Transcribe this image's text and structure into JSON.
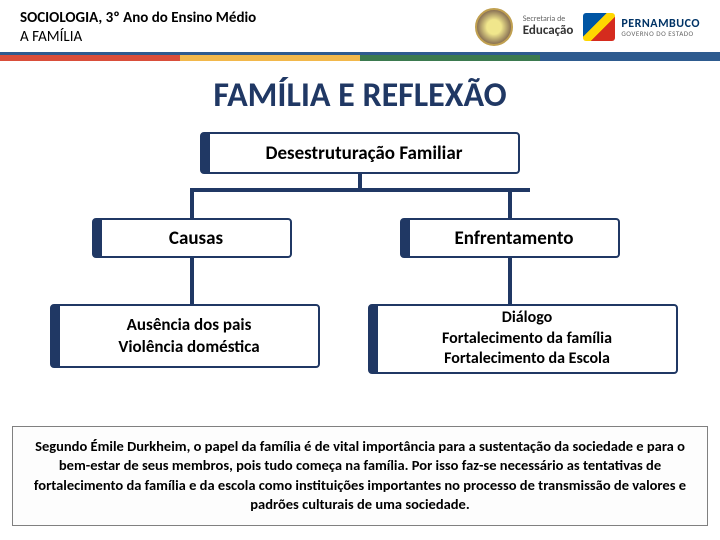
{
  "header": {
    "course": "SOCIOLOGIA, 3º Ano do Ensino Médio",
    "topic": "A FAMÍLIA",
    "secretaria_top": "Secretaria de",
    "secretaria_main": "Educação",
    "state_name": "PERNAMBUCO",
    "state_sub": "GOVERNO DO ESTADO"
  },
  "title": "FAMÍLIA E REFLEXÃO",
  "diagram": {
    "type": "tree",
    "root": "Desestruturação Familiar",
    "level1": {
      "left": "Causas",
      "right": "Enfrentamento"
    },
    "level2": {
      "left_line1": "Ausência dos pais",
      "left_line2": "Violência doméstica",
      "right_line1": "Diálogo",
      "right_line2": "Fortalecimento da família",
      "right_line3": "Fortalecimento da Escola"
    },
    "node_border_color": "#203864",
    "node_bg": "#ffffff",
    "connector_color": "#203864",
    "title_fontsize": 34,
    "node_fontsize": 19,
    "leaf_fontsize": 17
  },
  "footer": "Segundo Émile Durkheim, o papel da família é de vital importância para a sustentação da sociedade e para o bem-estar de seus membros, pois tudo começa na família. Por isso faz-se necessário as tentativas de fortalecimento da família e da escola como instituições importantes no processo de  transmissão de valores e padrões culturais de uma sociedade.",
  "colors": {
    "blue_strip": "#2e5b8f",
    "strip_red": "#d94e3a",
    "strip_yellow": "#f2b84b",
    "strip_green": "#3b7a4f",
    "strip_blue": "#2e5b8f",
    "title_color": "#203864"
  }
}
